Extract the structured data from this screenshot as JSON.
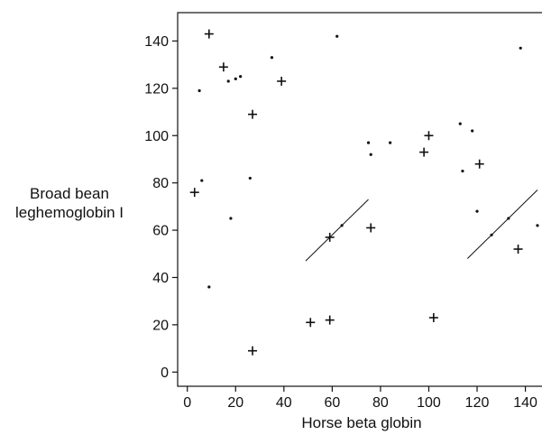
{
  "chart_data": {
    "type": "scatter",
    "title": "",
    "xlabel": "Horse beta globin",
    "ylabel_lines": [
      "Broad bean",
      "leghemoglobin I"
    ],
    "xlim": [
      -4,
      148
    ],
    "ylim": [
      -6,
      152
    ],
    "xticks": [
      0,
      20,
      40,
      60,
      80,
      100,
      120,
      140
    ],
    "yticks": [
      0,
      20,
      40,
      60,
      80,
      100,
      120,
      140
    ],
    "grid": false,
    "legend": "none",
    "series": [
      {
        "marker": "plus",
        "points": [
          [
            3,
            76
          ],
          [
            9,
            143
          ],
          [
            15,
            129
          ],
          [
            27,
            109
          ],
          [
            27,
            9
          ],
          [
            39,
            123
          ],
          [
            51,
            21
          ],
          [
            59,
            22
          ],
          [
            59,
            57
          ],
          [
            76,
            61
          ],
          [
            98,
            93
          ],
          [
            100,
            100
          ],
          [
            102,
            23
          ],
          [
            121,
            88
          ],
          [
            137,
            52
          ]
        ]
      },
      {
        "marker": "dot",
        "points": [
          [
            5,
            119
          ],
          [
            6,
            81
          ],
          [
            9,
            36
          ],
          [
            17,
            123
          ],
          [
            18,
            65
          ],
          [
            20,
            124
          ],
          [
            22,
            125
          ],
          [
            26,
            82
          ],
          [
            35,
            133
          ],
          [
            62,
            142
          ],
          [
            64,
            62
          ],
          [
            75,
            97
          ],
          [
            76,
            92
          ],
          [
            84,
            97
          ],
          [
            113,
            105
          ],
          [
            114,
            85
          ],
          [
            118,
            102
          ],
          [
            120,
            68
          ],
          [
            126,
            58
          ],
          [
            133,
            65
          ],
          [
            138,
            137
          ],
          [
            145,
            62
          ]
        ]
      }
    ],
    "lines": [
      {
        "x": [
          49,
          75
        ],
        "y": [
          47,
          73
        ]
      },
      {
        "x": [
          116,
          145
        ],
        "y": [
          48,
          77
        ]
      }
    ]
  }
}
